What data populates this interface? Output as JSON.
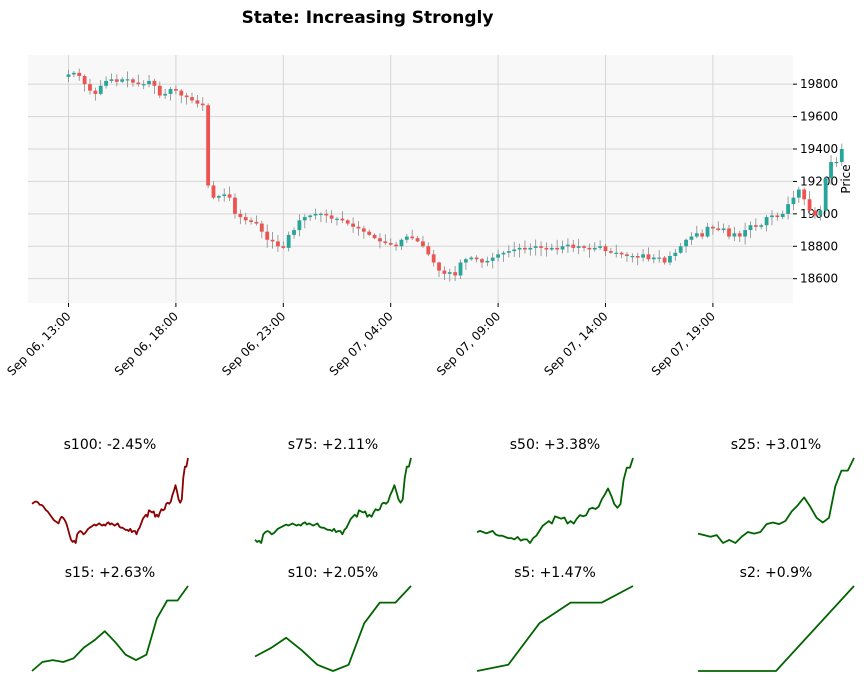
{
  "title": "State: Increasing Strongly",
  "colors": {
    "up": "#26a69a",
    "down": "#ef5350",
    "wick": "#888888",
    "positive_line": "#006400",
    "negative_line": "#8b0000",
    "panel_bg": "#f8f8f8",
    "grid": "#d6d6d6"
  },
  "chart_data": {
    "main": {
      "type": "candlestick",
      "ylabel": "Price",
      "ylim": [
        18450,
        19980
      ],
      "yticks": [
        18600,
        18800,
        19000,
        19200,
        19400,
        19600,
        19800
      ],
      "ytick_labels": [
        "18600",
        "18800",
        "19000",
        "19200",
        "19400",
        "19600",
        "19800"
      ],
      "xticks_index": [
        1,
        21,
        41,
        61,
        81,
        101,
        121
      ],
      "xtick_labels": [
        "Sep 06, 13:00",
        "Sep 06, 18:00",
        "Sep 06, 23:00",
        "Sep 07, 04:00",
        "Sep 07, 09:00",
        "Sep 07, 14:00",
        "Sep 07, 19:00"
      ],
      "close": [
        19860,
        19870,
        19850,
        19800,
        19760,
        19740,
        19790,
        19820,
        19830,
        19815,
        19830,
        19830,
        19810,
        19800,
        19800,
        19820,
        19790,
        19730,
        19740,
        19770,
        19760,
        19730,
        19720,
        19700,
        19680,
        19670,
        19175,
        19100,
        19110,
        19120,
        19100,
        19000,
        18980,
        18960,
        18950,
        18940,
        18890,
        18840,
        18830,
        18800,
        18790,
        18870,
        18900,
        18960,
        18980,
        18990,
        19000,
        19000,
        18990,
        18970,
        18970,
        18960,
        18940,
        18920,
        18910,
        18890,
        18870,
        18850,
        18830,
        18820,
        18810,
        18800,
        18840,
        18860,
        18850,
        18830,
        18800,
        18750,
        18700,
        18650,
        18630,
        18640,
        18620,
        18700,
        18720,
        18730,
        18720,
        18700,
        18710,
        18730,
        18750,
        18760,
        18770,
        18780,
        18790,
        18780,
        18790,
        18800,
        18790,
        18780,
        18790,
        18780,
        18800,
        18810,
        18790,
        18800,
        18790,
        18780,
        18790,
        18800,
        18770,
        18760,
        18760,
        18750,
        18740,
        18740,
        18730,
        18750,
        18720,
        18730,
        18730,
        18700,
        18740,
        18760,
        18800,
        18840,
        18860,
        18880,
        18860,
        18920,
        18910,
        18900,
        18910,
        18860,
        18880,
        18860,
        18900,
        18930,
        18920,
        18930,
        18980,
        18990,
        18980,
        19000,
        19060,
        19100,
        19150,
        19090,
        19020,
        18990,
        19020,
        19220,
        19320,
        19320,
        19400
      ]
    },
    "minis": [
      {
        "label": "s100: -2.45%",
        "change_pct": -2.45,
        "window": 100
      },
      {
        "label": "s75: +2.11%",
        "change_pct": 2.11,
        "window": 75
      },
      {
        "label": "s50: +3.38%",
        "change_pct": 3.38,
        "window": 50
      },
      {
        "label": "s25: +3.01%",
        "change_pct": 3.01,
        "window": 25
      },
      {
        "label": "s15: +2.63%",
        "change_pct": 2.63,
        "window": 15
      },
      {
        "label": "s10: +2.05%",
        "change_pct": 2.05,
        "window": 10
      },
      {
        "label": "s5: +1.47%",
        "change_pct": 1.47,
        "window": 5
      },
      {
        "label": "s2: +0.9%",
        "change_pct": 0.9,
        "window": 2
      }
    ]
  }
}
